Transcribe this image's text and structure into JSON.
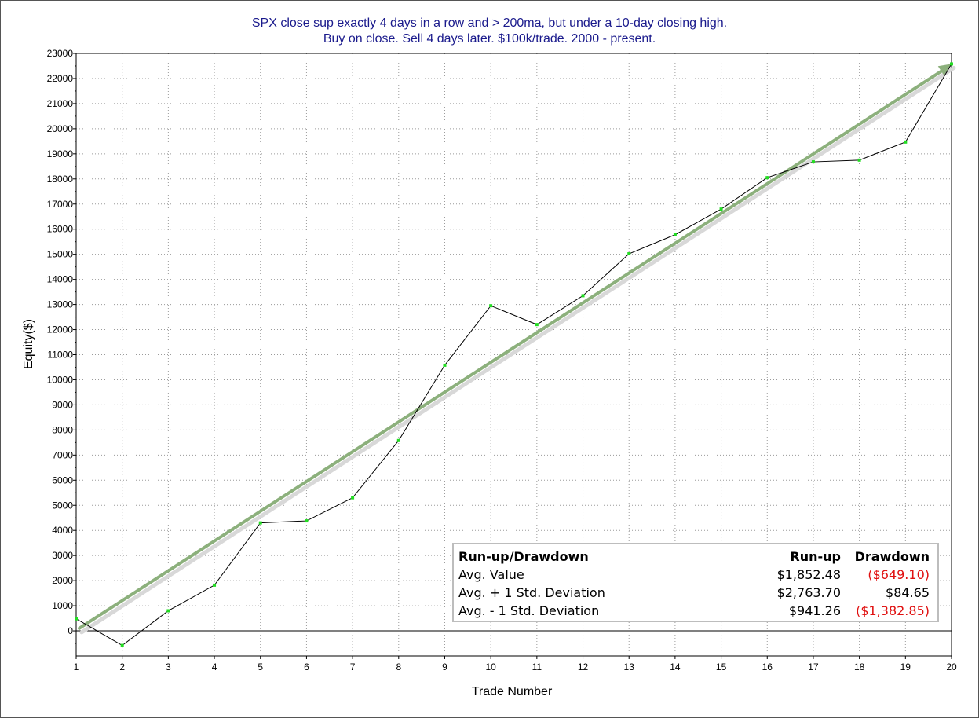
{
  "chart_data": {
    "type": "line",
    "title": "SPX close sup exactly 4 days in a row and > 200ma, but under a 10-day closing high.",
    "subtitle": "Buy on close. Sell 4 days later. $100k/trade. 2000 - present.",
    "xlabel": "Trade Number",
    "ylabel": "Equity($)",
    "xlim": [
      1,
      20
    ],
    "ylim": [
      -1000,
      23000
    ],
    "x_ticks": [
      "1",
      "2",
      "3",
      "4",
      "5",
      "6",
      "7",
      "8",
      "9",
      "10",
      "11",
      "12",
      "13",
      "14",
      "15",
      "16",
      "17",
      "18",
      "19",
      "20"
    ],
    "y_ticks": [
      "0",
      "1000",
      "2000",
      "3000",
      "4000",
      "5000",
      "6000",
      "7000",
      "8000",
      "9000",
      "10000",
      "11000",
      "12000",
      "13000",
      "14000",
      "15000",
      "16000",
      "17000",
      "18000",
      "19000",
      "20000",
      "21000",
      "22000",
      "23000"
    ],
    "grid": true,
    "series": [
      {
        "type": "line",
        "x": [
          1,
          2,
          3,
          4,
          5,
          6,
          7,
          8,
          9,
          10,
          11,
          12,
          13,
          14,
          15,
          16,
          17,
          18,
          19,
          20
        ],
        "values": [
          480,
          -580,
          800,
          1820,
          4300,
          4380,
          5300,
          7580,
          10580,
          12950,
          12200,
          13350,
          15020,
          15780,
          16800,
          18050,
          18680,
          18750,
          19470,
          22580
        ],
        "color": "#000000",
        "marker_color": "#22dd22"
      },
      {
        "type": "trend",
        "x": [
          1,
          20
        ],
        "values": [
          100,
          22580
        ],
        "color": "#8cb07c"
      }
    ],
    "colors": {
      "line": "#000000",
      "markers": "#22dd22",
      "trend": "#8cb07c",
      "title": "#1a1a8c",
      "negative": "#e01010"
    }
  },
  "stats_table": {
    "headers": [
      "Run-up/Drawdown",
      "Run-up",
      "Drawdown"
    ],
    "rows": [
      {
        "label": "Avg. Value",
        "runup": "$1,852.48",
        "drawdown": "($649.10)",
        "drawdown_negative": true
      },
      {
        "label": "Avg. + 1 Std. Deviation",
        "runup": "$2,763.70",
        "drawdown": "$84.65",
        "drawdown_negative": false
      },
      {
        "label": "Avg. - 1 Std. Deviation",
        "runup": "$941.26",
        "drawdown": "($1,382.85)",
        "drawdown_negative": true
      }
    ]
  }
}
